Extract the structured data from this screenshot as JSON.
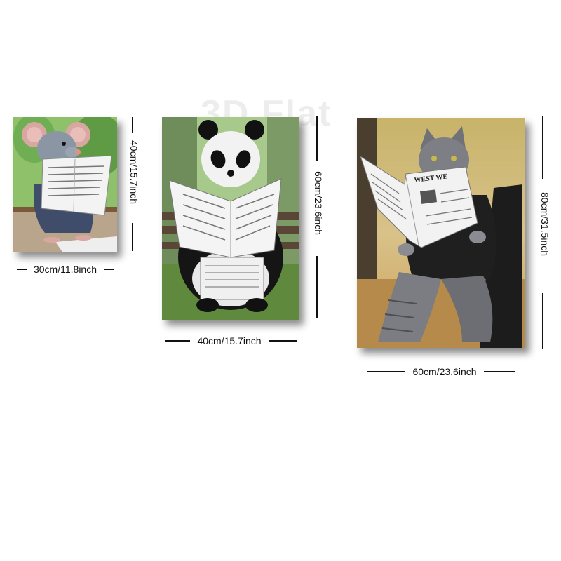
{
  "watermark": "3D Flat",
  "panels": [
    {
      "subject": "mouse",
      "width_label": "30cm/11.8inch",
      "height_label": "40cm/15.7inch"
    },
    {
      "subject": "panda",
      "width_label": "40cm/15.7inch",
      "height_label": "60cm/23.6inch"
    },
    {
      "subject": "cat",
      "width_label": "60cm/23.6inch",
      "height_label": "80cm/31.5inch",
      "newspaper_headline": "WEST WE"
    }
  ],
  "colors": {
    "dimension_line": "#111111",
    "panel_shadow": "#555555"
  }
}
